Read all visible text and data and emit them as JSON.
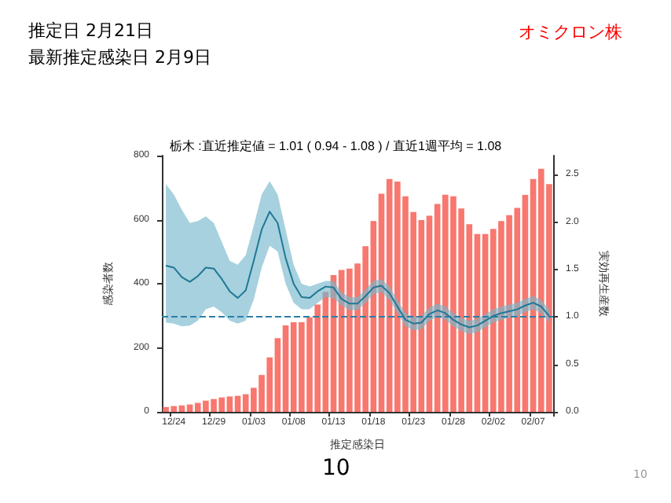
{
  "chart_data": {
    "type": "bar",
    "title": "栃木 :直近推定値 = 1.01 ( 0.94 - 1.08 ) / 直近1週平均 = 1.08",
    "xlabel": "推定感染日",
    "ylabel": "感染者数",
    "y2label": "実効再生産数",
    "annotations": [
      "推定日  2月21日",
      "最新推定感染日  2月9日",
      "オミクロン株",
      "10",
      "10"
    ],
    "categories": [
      null,
      "12/24",
      null,
      null,
      null,
      null,
      "12/29",
      null,
      null,
      null,
      null,
      "01/03",
      null,
      null,
      null,
      null,
      "01/08",
      null,
      null,
      null,
      null,
      "01/13",
      null,
      null,
      null,
      null,
      "01/18",
      null,
      null,
      null,
      null,
      "01/23",
      null,
      null,
      null,
      null,
      "01/28",
      null,
      null,
      null,
      null,
      "02/02",
      null,
      null,
      null,
      null,
      "02/07",
      null,
      null
    ],
    "series": [
      {
        "color": "#f8776e",
        "values": [
          15,
          18,
          20,
          23,
          28,
          35,
          40,
          45,
          48,
          50,
          55,
          75,
          115,
          170,
          230,
          270,
          280,
          280,
          295,
          335,
          375,
          427,
          443,
          447,
          463,
          517,
          596,
          681,
          727,
          719,
          673,
          624,
          599,
          612,
          649,
          678,
          673,
          635,
          586,
          555,
          555,
          571,
          596,
          614,
          637,
          677,
          727,
          759,
          711
        ]
      },
      {
        "type": "line",
        "axis": "y2",
        "color": "#1f7896",
        "values": [
          1.54,
          1.52,
          1.42,
          1.37,
          1.43,
          1.52,
          1.51,
          1.4,
          1.27,
          1.2,
          1.28,
          1.59,
          1.92,
          2.11,
          1.99,
          1.62,
          1.35,
          1.21,
          1.2,
          1.27,
          1.32,
          1.31,
          1.19,
          1.14,
          1.14,
          1.22,
          1.31,
          1.33,
          1.25,
          1.11,
          0.97,
          0.93,
          0.94,
          1.03,
          1.07,
          1.04,
          0.97,
          0.92,
          0.89,
          0.91,
          0.96,
          1.01,
          1.04,
          1.06,
          1.08,
          1.12,
          1.15,
          1.11,
          1.01
        ],
        "upper": [
          2.4,
          2.29,
          2.13,
          1.99,
          2.01,
          2.06,
          1.99,
          1.79,
          1.59,
          1.55,
          1.65,
          1.96,
          2.29,
          2.43,
          2.29,
          1.92,
          1.55,
          1.35,
          1.32,
          1.35,
          1.38,
          1.38,
          1.26,
          1.21,
          1.21,
          1.29,
          1.38,
          1.4,
          1.32,
          1.18,
          1.04,
          1.0,
          1.01,
          1.1,
          1.14,
          1.11,
          1.04,
          0.99,
          0.96,
          0.98,
          1.03,
          1.08,
          1.11,
          1.13,
          1.15,
          1.19,
          1.22,
          1.18,
          1.08
        ],
        "lower": [
          0.94,
          0.93,
          0.9,
          0.91,
          0.96,
          1.08,
          1.11,
          1.05,
          0.96,
          0.93,
          0.96,
          1.18,
          1.52,
          1.75,
          1.69,
          1.35,
          1.15,
          1.08,
          1.08,
          1.15,
          1.21,
          1.2,
          1.12,
          1.07,
          1.07,
          1.15,
          1.24,
          1.26,
          1.18,
          1.04,
          0.9,
          0.86,
          0.87,
          0.96,
          1.0,
          0.97,
          0.9,
          0.85,
          0.82,
          0.84,
          0.89,
          0.94,
          0.97,
          0.99,
          1.01,
          1.05,
          1.08,
          1.04,
          0.94
        ]
      }
    ],
    "ylim": [
      0,
      800
    ],
    "yticks": [
      0,
      200,
      400,
      600,
      800
    ],
    "y2lim": [
      0,
      2.7
    ],
    "y2ticks": [
      {
        "value": 0,
        "label": "0.0"
      },
      0.5,
      {
        "value": 1,
        "label": "1.0"
      },
      1.5,
      {
        "value": 2,
        "label": "2.0"
      },
      2.5
    ],
    "ref_lines": [
      {
        "axis": "y2",
        "value": 1.0,
        "color": "#2a7fa8",
        "line_style": "dashed"
      }
    ],
    "grid": false
  }
}
